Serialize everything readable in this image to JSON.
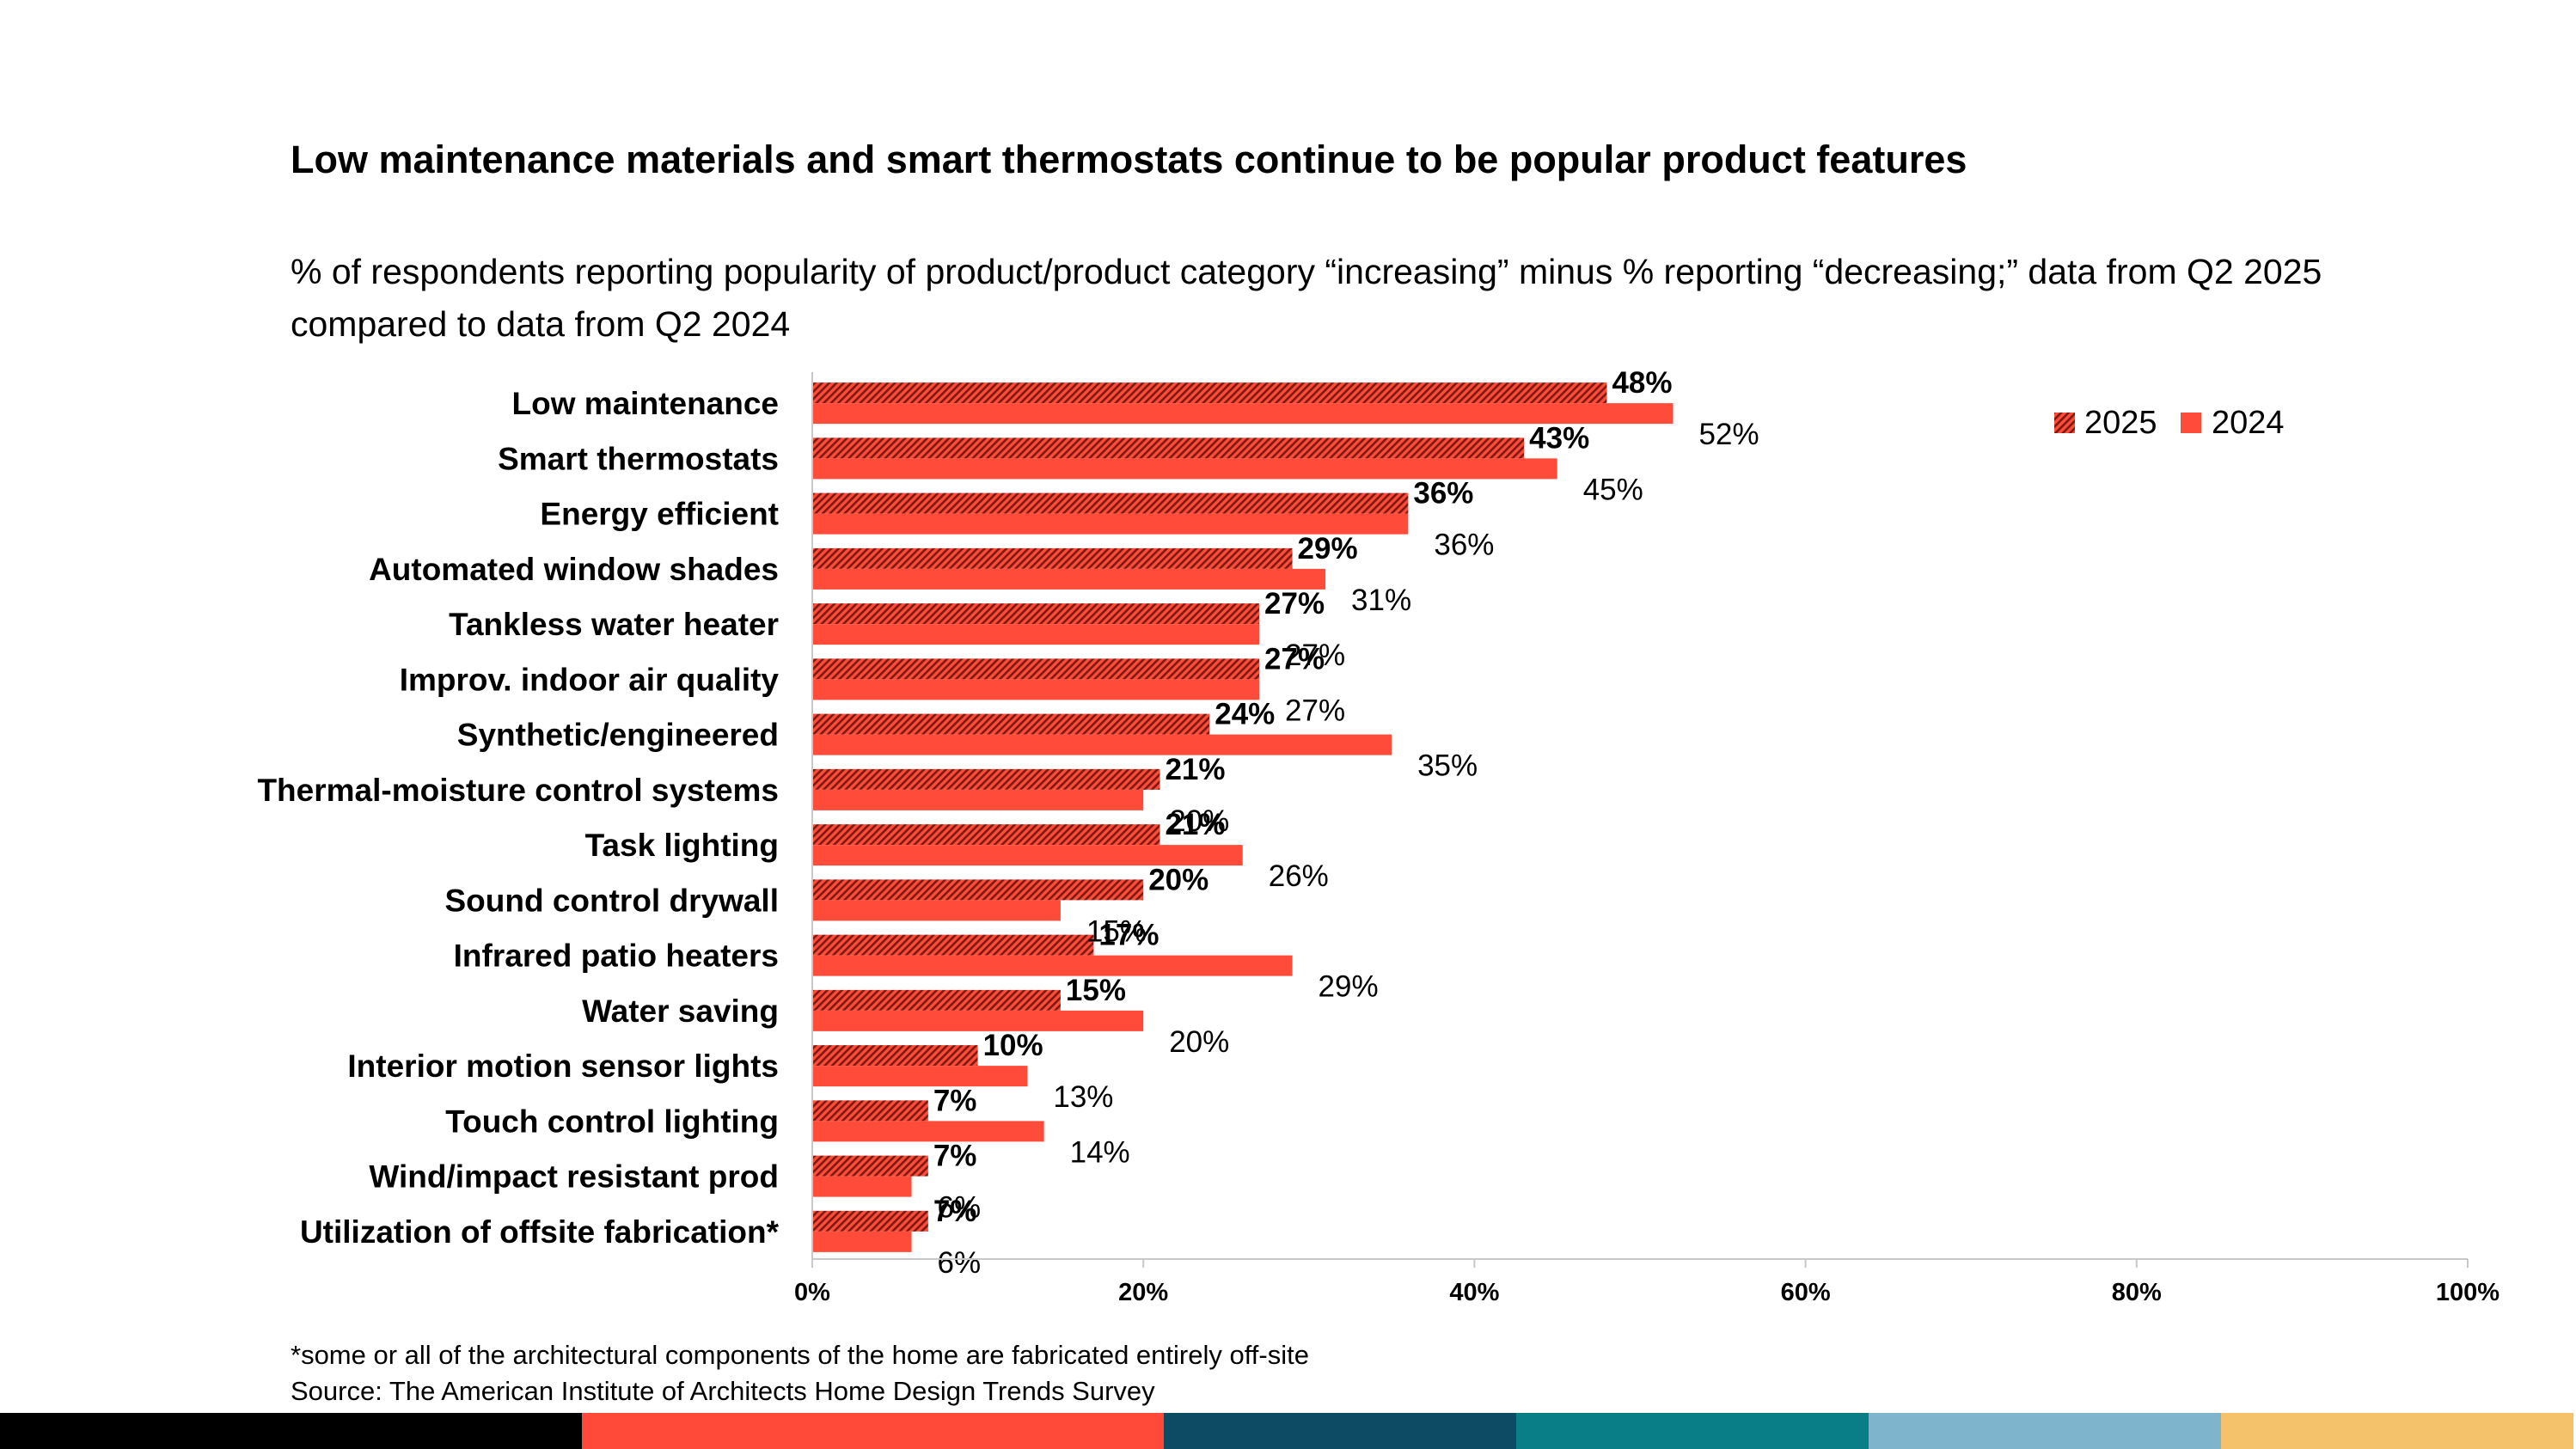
{
  "title": "Low maintenance materials and smart thermostats continue to be popular product features",
  "subtitle": "% of respondents reporting popularity of product/product category “increasing” minus % reporting “decreasing;” data from Q2 2025 compared to data from Q2 2024",
  "footnote": "*some or all of the architectural components of the home are fabricated entirely off-site",
  "source": "Source: The American Institute of Architects Home Design Trends Survey",
  "colors": {
    "bar_2025_fill": "#ff4b3a",
    "bar_2025_hatch": "#7a1a10",
    "bar_2024": "#ff4b3a",
    "axis": "#c8c8c8",
    "footer_bar": [
      "#000000",
      "#ff4a3a",
      "#0d4a63",
      "#0a7e86",
      "#7eb5cc",
      "#f3c26a"
    ]
  },
  "chart_data": {
    "type": "bar",
    "orientation": "horizontal",
    "categories": [
      "Low maintenance",
      "Smart thermostats",
      "Energy efficient",
      "Automated window shades",
      "Tankless water heater",
      "Improv. indoor air quality",
      "Synthetic/engineered",
      "Thermal-moisture control systems",
      "Task lighting",
      "Sound control drywall",
      "Infrared patio heaters",
      "Water saving",
      "Interior motion sensor lights",
      "Touch control lighting",
      "Wind/impact resistant prod",
      "Utilization of offsite fabrication*"
    ],
    "series": [
      {
        "name": "2025",
        "values": [
          48,
          43,
          36,
          29,
          27,
          27,
          24,
          21,
          21,
          20,
          17,
          15,
          10,
          7,
          7,
          7
        ],
        "labels": [
          "48%",
          "43%",
          "36%",
          "29%",
          "27%",
          "27%",
          "24%",
          "21%",
          "21%",
          "20%",
          "17%",
          "15%",
          "10%",
          "7%",
          "7%",
          "7%"
        ]
      },
      {
        "name": "2024",
        "values": [
          52,
          45,
          36,
          31,
          27,
          27,
          35,
          20,
          26,
          15,
          29,
          20,
          13,
          14,
          6,
          6
        ],
        "labels": [
          "52%",
          "45%",
          "36%",
          "31%",
          "27%",
          "27%",
          "35%",
          "20%",
          "26%",
          "15%",
          "29%",
          "20%",
          "13%",
          "14%",
          "6%",
          "6%"
        ]
      }
    ],
    "xlim": [
      0,
      100
    ],
    "xticks": [
      0,
      20,
      40,
      60,
      80,
      100
    ],
    "xtick_labels": [
      "0%",
      "20%",
      "40%",
      "60%",
      "80%",
      "100%"
    ],
    "legend": [
      "2025",
      "2024"
    ],
    "legend_position": "top-right",
    "grid": false
  }
}
